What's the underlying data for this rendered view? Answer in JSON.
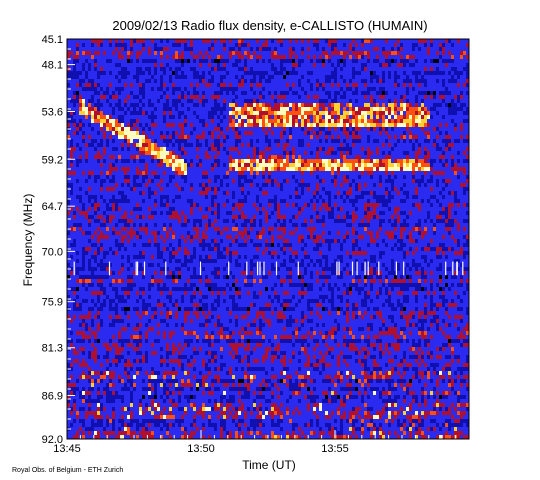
{
  "chart_data": {
    "type": "heatmap",
    "title": "2009/02/13  Radio flux density, e-CALLISTO (HUMAIN)",
    "xlabel": "Time (UT)",
    "ylabel": "Frequency (MHz)",
    "credit": "Royal Obs. of Belgium - ETH Zurich",
    "x_range": [
      "13:45",
      "14:00"
    ],
    "y_range_mhz": [
      45.1,
      92.0
    ],
    "y_inverted": true,
    "x_ticks": [
      "13:45",
      "13:50",
      "13:55"
    ],
    "y_ticks": [
      "45.1",
      "48.1",
      "53.6",
      "59.2",
      "64.7",
      "70.0",
      "75.9",
      "81.3",
      "86.9",
      "92.0"
    ],
    "colormap": [
      "#000000",
      "#1010b0",
      "#2a2af0",
      "#b01030",
      "#ff5010",
      "#ffd030",
      "#ffffc0"
    ],
    "features": [
      {
        "kind": "sweep",
        "start_min": 0.5,
        "end_min": 4.5,
        "start_mhz": 53.0,
        "end_mhz": 60.5
      },
      {
        "kind": "bright_band",
        "start_min": 6.0,
        "end_min": 13.5,
        "low_mhz": 52.5,
        "high_mhz": 55.5
      },
      {
        "kind": "bright_band",
        "start_min": 6.0,
        "end_min": 13.5,
        "low_mhz": 59.0,
        "high_mhz": 60.5
      }
    ]
  }
}
